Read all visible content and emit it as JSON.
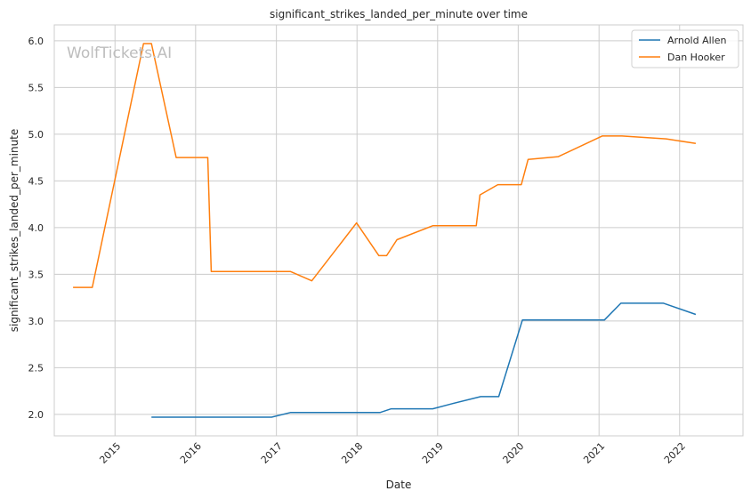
{
  "chart_data": {
    "type": "line",
    "title": "significant_strikes_landed_per_minute over time",
    "xlabel": "Date",
    "ylabel": "significant_strikes_landed_per_minute",
    "watermark": "WolfTickets.AI",
    "grid": true,
    "legend_position": "top-right",
    "xlim": [
      "2014-04-01",
      "2022-10-15"
    ],
    "ylim": [
      1.77,
      6.17
    ],
    "x_ticks": [
      "2015",
      "2016",
      "2017",
      "2018",
      "2019",
      "2020",
      "2021",
      "2022"
    ],
    "y_ticks": [
      2.0,
      2.5,
      3.0,
      3.5,
      4.0,
      4.5,
      5.0,
      5.5,
      6.0
    ],
    "series": [
      {
        "name": "Arnold Allen",
        "color": "#1f77b4",
        "points": [
          {
            "x": "2015-06-15",
            "y": 1.97
          },
          {
            "x": "2016-12-10",
            "y": 1.97
          },
          {
            "x": "2017-03-05",
            "y": 2.02
          },
          {
            "x": "2018-04-15",
            "y": 2.02
          },
          {
            "x": "2018-06-05",
            "y": 2.06
          },
          {
            "x": "2018-12-10",
            "y": 2.06
          },
          {
            "x": "2019-03-01",
            "y": 2.11
          },
          {
            "x": "2019-07-15",
            "y": 2.19
          },
          {
            "x": "2019-10-05",
            "y": 2.19
          },
          {
            "x": "2020-01-20",
            "y": 3.01
          },
          {
            "x": "2021-01-25",
            "y": 3.01
          },
          {
            "x": "2021-04-10",
            "y": 3.19
          },
          {
            "x": "2021-10-20",
            "y": 3.19
          },
          {
            "x": "2022-03-15",
            "y": 3.07
          }
        ]
      },
      {
        "name": "Dan Hooker",
        "color": "#ff7f0e",
        "points": [
          {
            "x": "2014-06-25",
            "y": 3.36
          },
          {
            "x": "2014-09-20",
            "y": 3.36
          },
          {
            "x": "2015-05-10",
            "y": 5.97
          },
          {
            "x": "2015-06-15",
            "y": 5.97
          },
          {
            "x": "2015-10-05",
            "y": 4.75
          },
          {
            "x": "2016-02-25",
            "y": 4.75
          },
          {
            "x": "2016-03-12",
            "y": 3.53
          },
          {
            "x": "2017-03-05",
            "y": 3.53
          },
          {
            "x": "2017-06-10",
            "y": 3.43
          },
          {
            "x": "2017-12-30",
            "y": 4.05
          },
          {
            "x": "2018-04-10",
            "y": 3.7
          },
          {
            "x": "2018-05-15",
            "y": 3.7
          },
          {
            "x": "2018-07-01",
            "y": 3.87
          },
          {
            "x": "2018-12-10",
            "y": 4.02
          },
          {
            "x": "2019-06-25",
            "y": 4.02
          },
          {
            "x": "2019-07-12",
            "y": 4.35
          },
          {
            "x": "2019-10-01",
            "y": 4.46
          },
          {
            "x": "2020-01-15",
            "y": 4.46
          },
          {
            "x": "2020-02-15",
            "y": 4.73
          },
          {
            "x": "2020-07-01",
            "y": 4.76
          },
          {
            "x": "2021-01-15",
            "y": 4.98
          },
          {
            "x": "2021-04-15",
            "y": 4.98
          },
          {
            "x": "2021-11-01",
            "y": 4.95
          },
          {
            "x": "2022-03-15",
            "y": 4.9
          }
        ]
      }
    ]
  }
}
